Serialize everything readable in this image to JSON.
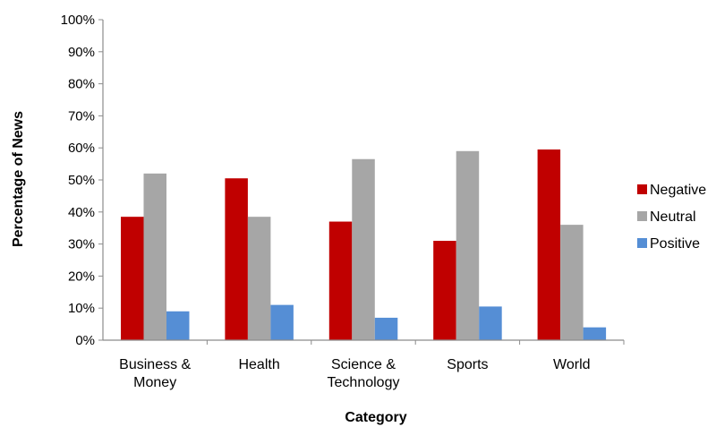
{
  "chart_data": {
    "type": "bar",
    "title": "",
    "xlabel": "Category",
    "ylabel": "Percentage of News",
    "ylim": [
      0,
      100
    ],
    "ytick_step": 10,
    "ytick_suffix": "%",
    "grid": false,
    "legend_position": "right",
    "categories": [
      [
        "Business &",
        "Money"
      ],
      [
        "Health"
      ],
      [
        "Science &",
        "Technology"
      ],
      [
        "Sports"
      ],
      [
        "World"
      ]
    ],
    "series": [
      {
        "name": "Negative",
        "color": "#c00000",
        "values": [
          38.5,
          50.5,
          37,
          31,
          59.5
        ]
      },
      {
        "name": "Neutral",
        "color": "#a6a6a6",
        "values": [
          52,
          38.5,
          56.5,
          59,
          36
        ]
      },
      {
        "name": "Positive",
        "color": "#558ed5",
        "values": [
          9,
          11,
          7,
          10.5,
          4
        ]
      }
    ]
  }
}
